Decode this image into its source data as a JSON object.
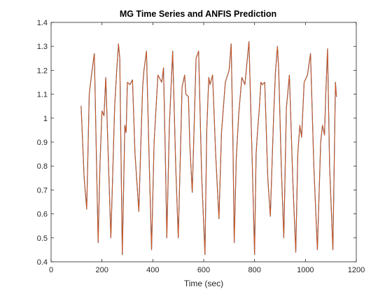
{
  "chart_data": {
    "type": "line",
    "title": "MG Time Series and ANFIS Prediction",
    "xlabel": "Time (sec)",
    "ylabel": "",
    "xlim": [
      0,
      1200
    ],
    "ylim": [
      0.4,
      1.4
    ],
    "xticks": [
      0,
      200,
      400,
      600,
      800,
      1000,
      1200
    ],
    "yticks": [
      0.4,
      0.5,
      0.6,
      0.7,
      0.8,
      0.9,
      1.0,
      1.1,
      1.2,
      1.3,
      1.4
    ],
    "xtick_labels": [
      "0",
      "200",
      "400",
      "600",
      "800",
      "1000",
      "1200"
    ],
    "ytick_labels": [
      "0.4",
      "0.5",
      "0.6",
      "0.7",
      "0.8",
      "0.9",
      "1",
      "1.1",
      "1.2",
      "1.3",
      "1.4"
    ],
    "grid": false,
    "box": true,
    "series": [
      {
        "color": "#0072BD",
        "x": [
          118,
          130,
          140,
          150,
          160,
          170,
          177,
          185,
          192,
          200,
          208,
          215,
          225,
          235,
          250,
          258,
          265,
          270,
          280,
          290,
          295,
          300,
          310,
          320,
          330,
          345,
          353,
          360,
          365,
          375,
          385,
          395,
          405,
          420,
          435,
          442,
          450,
          455,
          465,
          478,
          490,
          500,
          515,
          525,
          530,
          540,
          545,
          555,
          570,
          580,
          592,
          605,
          612,
          620,
          625,
          635,
          647,
          660,
          670,
          685,
          700,
          708,
          715,
          720,
          728,
          738,
          750,
          762,
          778,
          790,
          800,
          806,
          812,
          818,
          825,
          830,
          840,
          852,
          862,
          875,
          882,
          890,
          895,
          905,
          915,
          925,
          937,
          950,
          962,
          970,
          978,
          985,
          995,
          1008,
          1020,
          1033,
          1047,
          1060,
          1067,
          1075,
          1080,
          1087,
          1095,
          1108,
          1118,
          1122
        ],
        "y": [
          1.05,
          0.75,
          0.62,
          1.1,
          1.19,
          1.27,
          0.9,
          0.48,
          0.8,
          1.03,
          1.01,
          1.17,
          0.83,
          0.5,
          1.05,
          1.2,
          1.31,
          1.25,
          0.43,
          0.97,
          0.94,
          1.15,
          1.14,
          1.16,
          0.85,
          0.61,
          0.9,
          1.13,
          1.2,
          1.28,
          0.85,
          0.45,
          0.9,
          1.18,
          1.15,
          1.21,
          0.8,
          0.5,
          0.97,
          1.28,
          0.8,
          0.5,
          1.13,
          1.18,
          1.1,
          1.09,
          0.9,
          0.69,
          1.25,
          1.28,
          0.76,
          0.43,
          0.95,
          1.17,
          1.14,
          1.18,
          0.85,
          0.58,
          0.94,
          1.15,
          1.2,
          1.31,
          0.9,
          0.48,
          0.83,
          1.02,
          1.17,
          1.14,
          1.32,
          0.85,
          0.43,
          0.85,
          0.95,
          1.03,
          1.15,
          1.14,
          1.15,
          0.75,
          0.59,
          1.01,
          1.19,
          1.3,
          1.2,
          0.8,
          0.5,
          1.04,
          1.18,
          0.75,
          0.44,
          0.85,
          0.97,
          0.92,
          1.15,
          1.18,
          1.27,
          0.8,
          0.45,
          0.9,
          0.97,
          0.93,
          1.1,
          1.29,
          0.8,
          0.45,
          1.15,
          1.09
        ]
      },
      {
        "color": "#D95319",
        "x": [
          118,
          130,
          140,
          150,
          160,
          170,
          177,
          185,
          192,
          200,
          208,
          215,
          225,
          235,
          250,
          258,
          265,
          270,
          280,
          290,
          295,
          300,
          310,
          320,
          330,
          345,
          353,
          360,
          365,
          375,
          385,
          395,
          405,
          420,
          435,
          442,
          450,
          455,
          465,
          478,
          490,
          500,
          515,
          525,
          530,
          540,
          545,
          555,
          570,
          580,
          592,
          605,
          612,
          620,
          625,
          635,
          647,
          660,
          670,
          685,
          700,
          708,
          715,
          720,
          728,
          738,
          750,
          762,
          778,
          790,
          800,
          806,
          812,
          818,
          825,
          830,
          840,
          852,
          862,
          875,
          882,
          890,
          895,
          905,
          915,
          925,
          937,
          950,
          962,
          970,
          978,
          985,
          995,
          1008,
          1020,
          1033,
          1047,
          1060,
          1067,
          1075,
          1080,
          1087,
          1095,
          1108,
          1118,
          1122
        ],
        "y": [
          1.05,
          0.75,
          0.62,
          1.1,
          1.19,
          1.27,
          0.9,
          0.48,
          0.8,
          1.03,
          1.01,
          1.17,
          0.83,
          0.5,
          1.05,
          1.2,
          1.31,
          1.25,
          0.43,
          0.97,
          0.94,
          1.15,
          1.14,
          1.16,
          0.85,
          0.61,
          0.9,
          1.13,
          1.2,
          1.28,
          0.85,
          0.45,
          0.9,
          1.18,
          1.15,
          1.21,
          0.8,
          0.5,
          0.97,
          1.28,
          0.8,
          0.5,
          1.13,
          1.18,
          1.1,
          1.09,
          0.9,
          0.69,
          1.25,
          1.28,
          0.76,
          0.43,
          0.95,
          1.17,
          1.14,
          1.18,
          0.85,
          0.58,
          0.94,
          1.15,
          1.2,
          1.31,
          0.9,
          0.48,
          0.83,
          1.02,
          1.17,
          1.14,
          1.32,
          0.85,
          0.43,
          0.85,
          0.95,
          1.03,
          1.15,
          1.14,
          1.15,
          0.75,
          0.59,
          1.01,
          1.19,
          1.3,
          1.2,
          0.8,
          0.5,
          1.04,
          1.18,
          0.75,
          0.44,
          0.85,
          0.97,
          0.92,
          1.15,
          1.18,
          1.27,
          0.8,
          0.45,
          0.9,
          0.97,
          0.93,
          1.1,
          1.29,
          0.8,
          0.45,
          1.15,
          1.09
        ]
      }
    ]
  }
}
